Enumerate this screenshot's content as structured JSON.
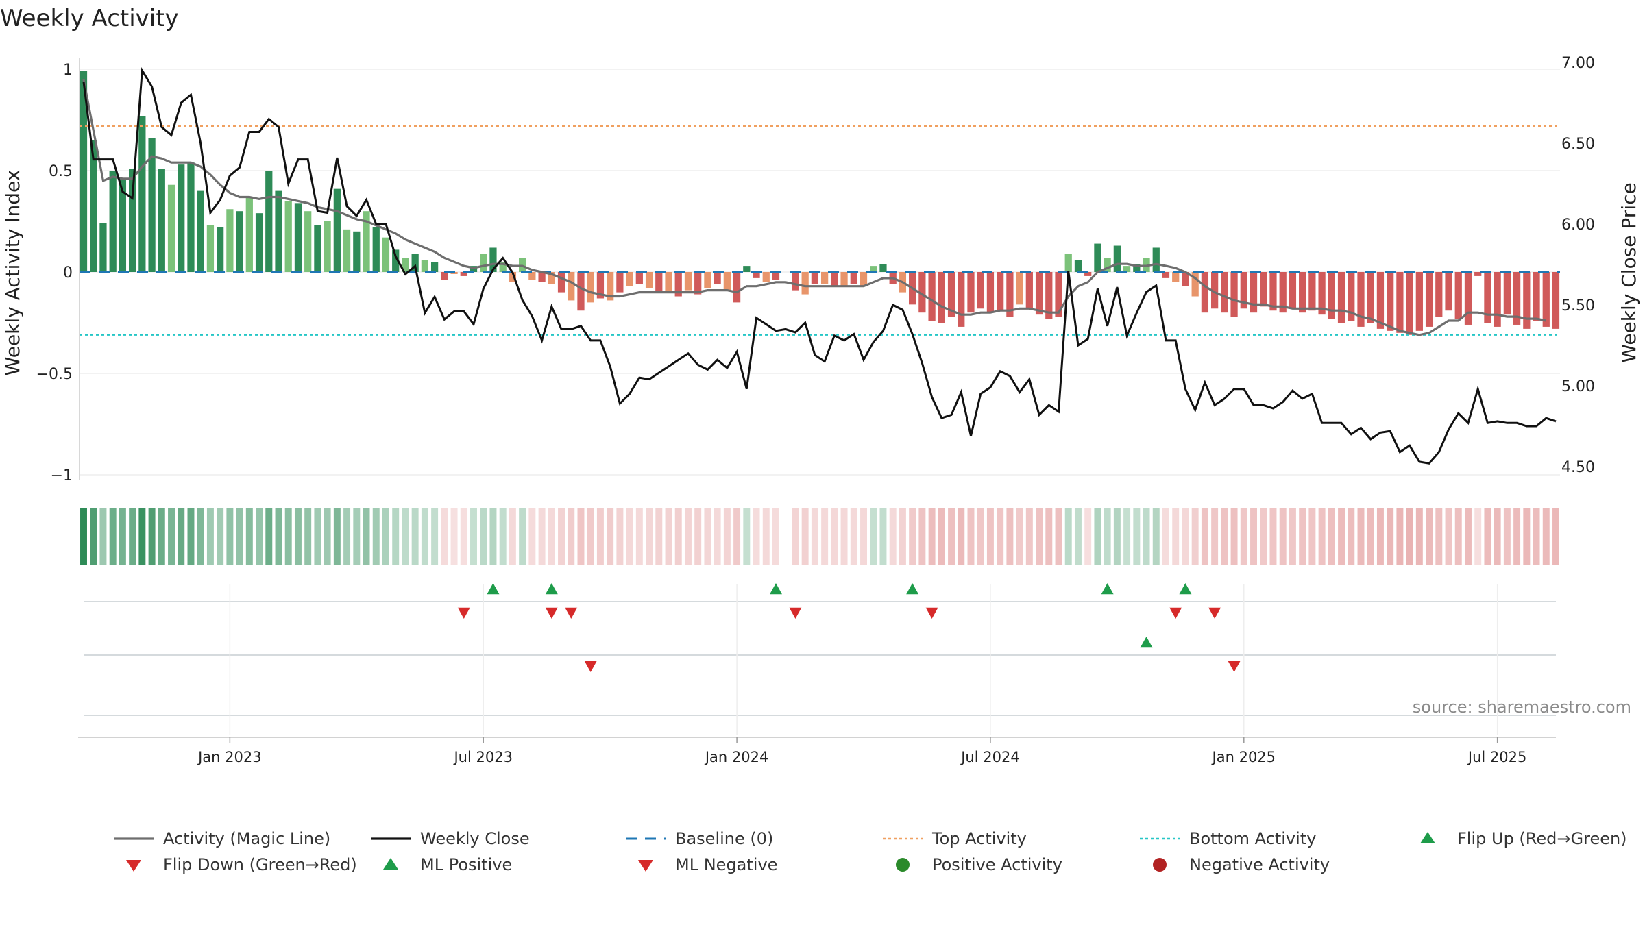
{
  "title": "Weekly Activity",
  "source": "source: sharemaestro.com",
  "chart_data": {
    "type": "bar",
    "title": "Weekly Activity",
    "y_left_label": "Weekly Activity Index",
    "y_right_label": "Weekly Close Price",
    "y_left_ticks": [
      "1",
      "0.5",
      "0",
      "−0.5",
      "−1"
    ],
    "y_left_tick_values": [
      1,
      0.5,
      0,
      -0.5,
      -1
    ],
    "y_left_range": [
      -1.08,
      1.04
    ],
    "y_right_ticks": [
      "7.00",
      "6.50",
      "6.00",
      "5.50",
      "5.00",
      "4.50"
    ],
    "y_right_tick_values": [
      7.0,
      6.5,
      6.0,
      5.5,
      5.0,
      4.5
    ],
    "y_right_range": [
      4.4,
      7.05
    ],
    "x_ticks": [
      "Jan 2023",
      "Jul 2023",
      "Jan 2024",
      "Jul 2024",
      "Jan 2025",
      "Jul 2025"
    ],
    "x_tick_week_index": [
      15,
      41,
      67,
      93,
      119,
      145
    ],
    "top_activity": 0.72,
    "bottom_activity": -0.31,
    "activity": [
      0.99,
      0.65,
      0.24,
      0.5,
      0.46,
      0.51,
      0.77,
      0.66,
      0.51,
      0.43,
      0.53,
      0.54,
      0.4,
      0.23,
      0.22,
      0.31,
      0.3,
      0.37,
      0.29,
      0.5,
      0.4,
      0.35,
      0.34,
      0.3,
      0.23,
      0.25,
      0.41,
      0.21,
      0.2,
      0.3,
      0.22,
      0.17,
      0.11,
      0.07,
      0.09,
      0.06,
      0.05,
      -0.04,
      -0.01,
      -0.02,
      0.03,
      0.09,
      0.12,
      0.05,
      -0.05,
      0.07,
      -0.04,
      -0.05,
      -0.06,
      -0.1,
      -0.14,
      -0.19,
      -0.15,
      -0.13,
      -0.14,
      -0.1,
      -0.07,
      -0.06,
      -0.08,
      -0.1,
      -0.1,
      -0.12,
      -0.09,
      -0.11,
      -0.08,
      -0.06,
      -0.09,
      -0.15,
      0.03,
      -0.03,
      -0.05,
      -0.04,
      -0.05,
      -0.09,
      -0.11,
      -0.06,
      -0.06,
      -0.07,
      -0.07,
      -0.06,
      -0.07,
      0.03,
      0.04,
      -0.06,
      -0.1,
      -0.16,
      -0.2,
      -0.24,
      -0.25,
      -0.22,
      -0.27,
      -0.2,
      -0.18,
      -0.2,
      -0.19,
      -0.22,
      -0.16,
      -0.18,
      -0.21,
      -0.23,
      -0.22,
      0.09,
      0.06,
      -0.02,
      0.14,
      0.07,
      0.13,
      0.03,
      0.04,
      0.07,
      0.12,
      -0.03,
      -0.05,
      -0.07,
      -0.12,
      -0.2,
      -0.18,
      -0.2,
      -0.22,
      -0.18,
      -0.2,
      -0.17,
      -0.19,
      -0.2,
      -0.18,
      -0.2,
      -0.19,
      -0.21,
      -0.23,
      -0.25,
      -0.24,
      -0.27,
      -0.25,
      -0.28,
      -0.29,
      -0.3,
      -0.31,
      -0.29,
      -0.27,
      -0.22,
      -0.19,
      -0.23,
      -0.26,
      -0.02,
      -0.25,
      -0.27,
      -0.21,
      -0.26,
      -0.28,
      -0.24,
      -0.27,
      -0.28
    ],
    "magic_line": [
      0.95,
      0.7,
      0.45,
      0.47,
      0.46,
      0.46,
      0.52,
      0.57,
      0.56,
      0.54,
      0.54,
      0.54,
      0.52,
      0.48,
      0.43,
      0.39,
      0.37,
      0.37,
      0.36,
      0.37,
      0.37,
      0.36,
      0.35,
      0.34,
      0.32,
      0.31,
      0.3,
      0.28,
      0.26,
      0.25,
      0.23,
      0.21,
      0.19,
      0.16,
      0.14,
      0.12,
      0.1,
      0.07,
      0.05,
      0.03,
      0.02,
      0.03,
      0.04,
      0.04,
      0.03,
      0.03,
      0.01,
      0.0,
      -0.01,
      -0.03,
      -0.05,
      -0.08,
      -0.1,
      -0.11,
      -0.12,
      -0.12,
      -0.11,
      -0.1,
      -0.1,
      -0.1,
      -0.1,
      -0.1,
      -0.1,
      -0.1,
      -0.09,
      -0.09,
      -0.09,
      -0.1,
      -0.07,
      -0.07,
      -0.06,
      -0.05,
      -0.05,
      -0.06,
      -0.07,
      -0.07,
      -0.07,
      -0.07,
      -0.07,
      -0.07,
      -0.07,
      -0.05,
      -0.03,
      -0.03,
      -0.05,
      -0.08,
      -0.11,
      -0.14,
      -0.17,
      -0.19,
      -0.21,
      -0.21,
      -0.2,
      -0.2,
      -0.19,
      -0.19,
      -0.18,
      -0.18,
      -0.19,
      -0.2,
      -0.2,
      -0.12,
      -0.07,
      -0.05,
      0.0,
      0.02,
      0.04,
      0.04,
      0.03,
      0.03,
      0.04,
      0.03,
      0.02,
      0.0,
      -0.03,
      -0.07,
      -0.1,
      -0.12,
      -0.14,
      -0.15,
      -0.16,
      -0.16,
      -0.17,
      -0.17,
      -0.18,
      -0.18,
      -0.18,
      -0.18,
      -0.19,
      -0.19,
      -0.2,
      -0.22,
      -0.23,
      -0.25,
      -0.27,
      -0.29,
      -0.3,
      -0.31,
      -0.3,
      -0.27,
      -0.24,
      -0.24,
      -0.2,
      -0.2,
      -0.21,
      -0.21,
      -0.22,
      -0.22,
      -0.23,
      -0.23,
      -0.24
    ],
    "weekly_close": [
      6.88,
      6.4,
      6.4,
      6.4,
      6.2,
      6.16,
      6.95,
      6.85,
      6.6,
      6.55,
      6.75,
      6.8,
      6.5,
      6.07,
      6.15,
      6.3,
      6.35,
      6.57,
      6.57,
      6.65,
      6.6,
      6.25,
      6.4,
      6.4,
      6.08,
      6.07,
      6.41,
      6.11,
      6.05,
      6.15,
      6.0,
      6.0,
      5.8,
      5.69,
      5.74,
      5.45,
      5.55,
      5.41,
      5.46,
      5.46,
      5.38,
      5.6,
      5.72,
      5.79,
      5.7,
      5.53,
      5.43,
      5.28,
      5.49,
      5.35,
      5.35,
      5.37,
      5.28,
      5.28,
      5.12,
      4.89,
      4.95,
      5.05,
      5.04,
      5.08,
      5.12,
      5.16,
      5.2,
      5.13,
      5.1,
      5.16,
      5.11,
      5.21,
      4.98,
      5.42,
      5.38,
      5.34,
      5.35,
      5.33,
      5.39,
      5.19,
      5.15,
      5.31,
      5.28,
      5.32,
      5.16,
      5.27,
      5.34,
      5.5,
      5.47,
      5.32,
      5.14,
      4.93,
      4.8,
      4.82,
      4.96,
      4.69,
      4.95,
      4.99,
      5.09,
      5.06,
      4.96,
      5.04,
      4.82,
      4.88,
      4.84,
      5.71,
      5.25,
      5.29,
      5.6,
      5.37,
      5.61,
      5.31,
      5.45,
      5.58,
      5.62,
      5.28,
      5.28,
      4.98,
      4.85,
      5.02,
      4.88,
      4.92,
      4.98,
      4.98,
      4.88,
      4.88,
      4.86,
      4.9,
      4.97,
      4.92,
      4.95,
      4.77,
      4.77,
      4.77,
      4.7,
      4.74,
      4.67,
      4.71,
      4.72,
      4.59,
      4.63,
      4.53,
      4.52,
      4.59,
      4.73,
      4.83,
      4.77,
      4.98,
      4.77,
      4.78,
      4.77,
      4.77,
      4.75,
      4.75,
      4.8,
      4.78
    ],
    "hist_gap_week_index": 72,
    "flip_up_week_index": [
      42,
      48,
      71,
      85,
      105,
      113
    ],
    "flip_down_week_index": [
      39,
      48,
      50,
      73,
      87,
      112,
      116
    ],
    "ml_positive_week_index": [
      109
    ],
    "ml_negative_week_index": [
      52,
      118
    ],
    "colors": {
      "pos_strong": "#2e8b57",
      "pos_light": "#7cc27a",
      "neg_strong": "#d05a5a",
      "neg_light": "#e8956b",
      "close_line": "#111111",
      "magic_line": "#6e6e6e",
      "baseline": "#1f77b4",
      "top_activity": "#f0a060",
      "bottom_activity": "#26c6c6",
      "flip_up": "#1e9c4a",
      "flip_down": "#d62a2a",
      "positive_activity": "#2a8a2a",
      "negative_activity": "#b22222",
      "grid": "#eeeeee"
    },
    "legend": [
      {
        "label": "Activity (Magic Line)",
        "kind": "line-gray"
      },
      {
        "label": "Weekly Close",
        "kind": "line-black"
      },
      {
        "label": "Baseline (0)",
        "kind": "dash-blue"
      },
      {
        "label": "Top Activity",
        "kind": "dot-orange"
      },
      {
        "label": "Bottom Activity",
        "kind": "dot-cyan"
      },
      {
        "label": "Flip Up (Red→Green)",
        "kind": "tri-up"
      },
      {
        "label": "Flip Down (Green→Red)",
        "kind": "tri-down"
      },
      {
        "label": "ML Positive",
        "kind": "tri-up"
      },
      {
        "label": "ML Negative",
        "kind": "tri-down"
      },
      {
        "label": "Positive Activity",
        "kind": "dot-green"
      },
      {
        "label": "Negative Activity",
        "kind": "dot-red"
      }
    ]
  }
}
